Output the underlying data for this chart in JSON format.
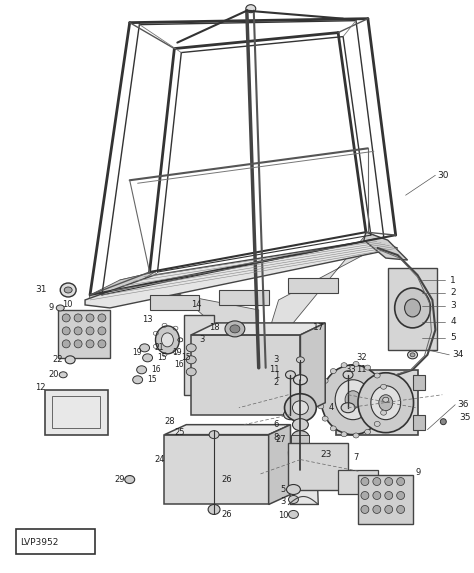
{
  "fig_width": 4.74,
  "fig_height": 5.73,
  "dpi": 100,
  "bg_color": "#f0f0f0",
  "line_color": "#444444",
  "border_label": "LVP3952"
}
